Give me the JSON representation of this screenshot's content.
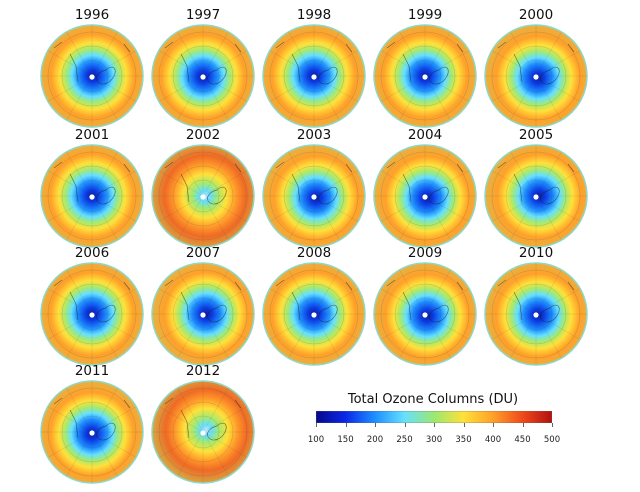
{
  "figure": {
    "years": [
      "1996",
      "1997",
      "1998",
      "1999",
      "2000",
      "2001",
      "2002",
      "2003",
      "2004",
      "2005",
      "2006",
      "2007",
      "2008",
      "2009",
      "2010",
      "2011",
      "2012"
    ],
    "hole_strength": [
      0.75,
      0.78,
      0.92,
      0.85,
      0.85,
      0.9,
      0.35,
      0.82,
      0.72,
      0.8,
      0.95,
      0.8,
      0.9,
      0.72,
      0.9,
      0.88,
      0.45
    ],
    "hole_offset": [
      [
        0.02,
        0.0
      ],
      [
        0.0,
        0.02
      ],
      [
        0.0,
        0.0
      ],
      [
        0.0,
        0.0
      ],
      [
        0.05,
        0.05
      ],
      [
        0.0,
        0.0
      ],
      [
        0.05,
        0.0
      ],
      [
        0.05,
        0.05
      ],
      [
        0.05,
        0.05
      ],
      [
        0.08,
        0.0
      ],
      [
        0.0,
        0.0
      ],
      [
        0.08,
        0.0
      ],
      [
        0.0,
        0.0
      ],
      [
        0.05,
        0.05
      ],
      [
        0.05,
        0.03
      ],
      [
        0.0,
        0.05
      ],
      [
        0.08,
        -0.05
      ]
    ]
  },
  "legend": {
    "title": "Total Ozone Columns (DU)",
    "ticks": [
      "100",
      "150",
      "200",
      "250",
      "300",
      "350",
      "400",
      "450",
      "500"
    ],
    "colors": [
      "#08088a",
      "#0a28e8",
      "#1e90ff",
      "#66e0ff",
      "#9be870",
      "#ffe13a",
      "#ffa02a",
      "#ef4a1a",
      "#b01010"
    ]
  }
}
